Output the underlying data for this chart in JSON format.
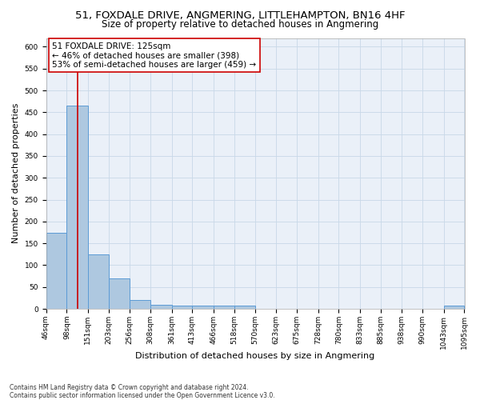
{
  "title": "51, FOXDALE DRIVE, ANGMERING, LITTLEHAMPTON, BN16 4HF",
  "subtitle": "Size of property relative to detached houses in Angmering",
  "xlabel": "Distribution of detached houses by size in Angmering",
  "ylabel": "Number of detached properties",
  "bin_edges": [
    46,
    98,
    151,
    203,
    256,
    308,
    361,
    413,
    466,
    518,
    570,
    623,
    675,
    728,
    780,
    833,
    885,
    938,
    990,
    1043,
    1095
  ],
  "bin_counts": [
    175,
    465,
    125,
    70,
    20,
    10,
    8,
    7,
    7,
    8,
    0,
    0,
    0,
    0,
    0,
    0,
    0,
    0,
    0,
    7
  ],
  "bar_color": "#aec8e0",
  "bar_edge_color": "#5b9bd5",
  "property_size": 125,
  "vline_color": "#cc0000",
  "annotation_text": "51 FOXDALE DRIVE: 125sqm\n← 46% of detached houses are smaller (398)\n53% of semi-detached houses are larger (459) →",
  "annotation_box_color": "#ffffff",
  "annotation_box_edge_color": "#cc0000",
  "ylim": [
    0,
    620
  ],
  "yticks": [
    0,
    50,
    100,
    150,
    200,
    250,
    300,
    350,
    400,
    450,
    500,
    550,
    600
  ],
  "background_color": "#eaf0f8",
  "footer_text": "Contains HM Land Registry data © Crown copyright and database right 2024.\nContains public sector information licensed under the Open Government Licence v3.0.",
  "title_fontsize": 9.5,
  "subtitle_fontsize": 8.5,
  "xlabel_fontsize": 8,
  "ylabel_fontsize": 8,
  "tick_fontsize": 6.5,
  "annotation_fontsize": 7.5,
  "footer_fontsize": 5.5
}
